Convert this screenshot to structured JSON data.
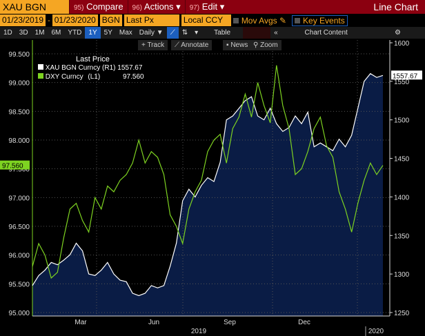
{
  "header": {
    "ticker": "XAU BGN Curncy",
    "compare": {
      "num": "95)",
      "label": "Compare"
    },
    "actions": {
      "num": "96)",
      "label": "Actions ▾"
    },
    "edit": {
      "num": "97)",
      "label": "Edit ▾"
    },
    "title": "Line Chart"
  },
  "controls": {
    "start_date": "01/23/2019",
    "end_date": "01/23/2020",
    "source": "BGN",
    "field": "Last Px",
    "currency": "Local CCY",
    "mov_avgs": "Mov Avgs",
    "key_events": "Key Events"
  },
  "periods": [
    "1D",
    "3D",
    "1M",
    "6M",
    "YTD",
    "1Y",
    "5Y",
    "Max"
  ],
  "active_period": "1Y",
  "frequency": "Daily ▼",
  "table": "Table",
  "chart_content": "Chart Content",
  "tools": [
    "+ Track",
    "⟋ Annotate",
    "▪ News",
    "⚲ Zoom"
  ],
  "legend": {
    "title": "Last Price",
    "items": [
      {
        "name": "XAU BGN Curncy",
        "axis": "(R1)",
        "value": "1557.67",
        "color": "#ffffff"
      },
      {
        "name": "DXY Curncy",
        "axis": "(L1)",
        "value": "97.560",
        "color": "#7ed321"
      }
    ]
  },
  "chart_data": {
    "type": "line",
    "x_start": "2019-01-23",
    "x_end": "2020-01-23",
    "interval": "weekly",
    "x_ticks": [
      "Mar",
      "Jun",
      "Sep",
      "Dec"
    ],
    "years": [
      "2019",
      "2020"
    ],
    "left_axis": {
      "range": [
        95,
        99.5
      ],
      "ticks": [
        "95.000",
        "95.500",
        "96.000",
        "96.500",
        "97.000",
        "97.500",
        "98.000",
        "98.500",
        "99.000",
        "99.500"
      ]
    },
    "right_axis": {
      "range": [
        1250,
        1600
      ],
      "ticks": [
        "1250",
        "1300",
        "1350",
        "1400",
        "1450",
        "1500",
        "1550",
        "1600"
      ]
    },
    "series": [
      {
        "name": "XAU BGN Curncy",
        "axis": "right",
        "values": [
          1285,
          1298,
          1305,
          1315,
          1312,
          1318,
          1325,
          1340,
          1330,
          1300,
          1298,
          1305,
          1315,
          1300,
          1292,
          1290,
          1275,
          1272,
          1275,
          1285,
          1282,
          1285,
          1310,
          1340,
          1395,
          1410,
          1400,
          1415,
          1425,
          1420,
          1445,
          1500,
          1505,
          1515,
          1525,
          1530,
          1505,
          1500,
          1515,
          1495,
          1485,
          1490,
          1505,
          1495,
          1510,
          1465,
          1470,
          1465,
          1460,
          1475,
          1465,
          1480,
          1515,
          1550,
          1560,
          1555,
          1557.67
        ]
      },
      {
        "name": "DXY Curncy",
        "axis": "left",
        "values": [
          95.8,
          96.2,
          96.0,
          95.6,
          95.7,
          96.3,
          96.8,
          96.9,
          96.6,
          96.4,
          97.0,
          96.8,
          97.2,
          97.1,
          97.3,
          97.4,
          97.6,
          98.0,
          97.6,
          97.8,
          97.7,
          97.4,
          96.7,
          96.5,
          96.2,
          96.8,
          97.1,
          97.3,
          97.8,
          98.0,
          98.1,
          97.6,
          98.2,
          98.4,
          98.8,
          98.4,
          99.0,
          98.6,
          98.3,
          99.3,
          98.6,
          98.2,
          97.4,
          97.5,
          97.8,
          98.2,
          98.4,
          97.9,
          97.7,
          97.1,
          96.8,
          96.4,
          96.9,
          97.3,
          97.6,
          97.4,
          97.56
        ]
      }
    ],
    "last_labels": {
      "left": "97.560",
      "right": "1557.67"
    }
  }
}
